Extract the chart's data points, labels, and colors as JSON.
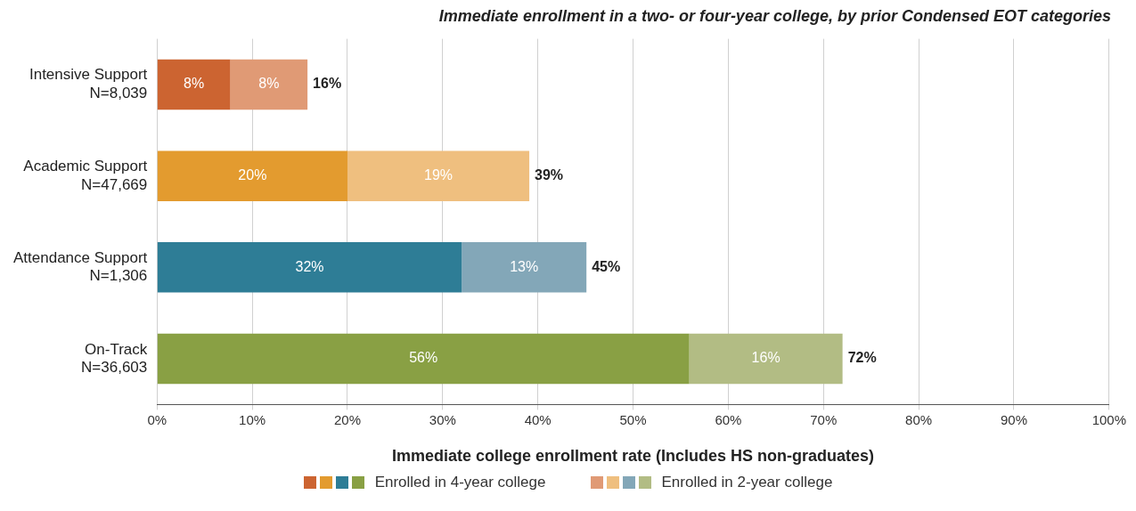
{
  "chart_data": {
    "type": "bar",
    "orientation": "horizontal",
    "stacked": true,
    "title": "Immediate enrollment in a two- or four-year college, by prior Condensed EOT categories",
    "xlabel": "Immediate college enrollment rate (Includes HS non-graduates)",
    "categories": [
      "Intensive Support\nN=8,039",
      "Academic Support\nN=47,669",
      "Attendance Support\nN=1,306",
      "On-Track\nN=36,603"
    ],
    "series": [
      {
        "name": "Enrolled in 4-year college",
        "colors": [
          "#cc6431",
          "#e39b2f",
          "#2e7d96",
          "#89a044"
        ],
        "values": [
          7.7,
          20,
          32,
          55.9
        ],
        "value_labels": [
          "8%",
          "20%",
          "32%",
          "56%"
        ]
      },
      {
        "name": "Enrolled in 2-year college",
        "colors": [
          "#e09a75",
          "#efbf7f",
          "#83a7b8",
          "#b2bc84"
        ],
        "values": [
          8.1,
          19.1,
          13.1,
          16.1
        ],
        "value_labels": [
          "8%",
          "19%",
          "13%",
          "16%"
        ]
      }
    ],
    "totals": [
      "16%",
      "39%",
      "45%",
      "72%"
    ],
    "xlim": [
      0,
      100
    ],
    "xticks": [
      {
        "value": 0,
        "label": "0%"
      },
      {
        "value": 10,
        "label": "10%"
      },
      {
        "value": 20,
        "label": "20%"
      },
      {
        "value": 30,
        "label": "30%"
      },
      {
        "value": 40,
        "label": "40%"
      },
      {
        "value": 50,
        "label": "50%"
      },
      {
        "value": 60,
        "label": "60%"
      },
      {
        "value": 70,
        "label": "70%"
      },
      {
        "value": 80,
        "label": "80%"
      },
      {
        "value": 90,
        "label": "90%"
      },
      {
        "value": 100,
        "label": "100%"
      }
    ],
    "grid": "x",
    "legend": "bottom"
  }
}
